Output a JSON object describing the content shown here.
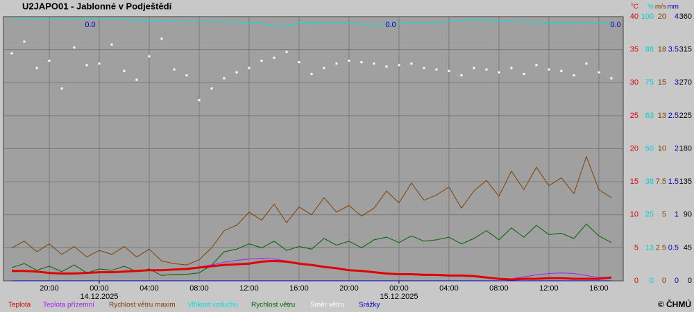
{
  "chart_data": {
    "type": "line",
    "title": "U2JAPO01 - Jablonné v Podještědí",
    "copyright": "© ČHMÚ",
    "x": [
      "2025-12-13T17:00",
      "2025-12-13T18:00",
      "2025-12-13T19:00",
      "2025-12-13T20:00",
      "2025-12-13T21:00",
      "2025-12-13T22:00",
      "2025-12-13T23:00",
      "2025-12-14T00:00",
      "2025-12-14T01:00",
      "2025-12-14T02:00",
      "2025-12-14T03:00",
      "2025-12-14T04:00",
      "2025-12-14T05:00",
      "2025-12-14T06:00",
      "2025-12-14T07:00",
      "2025-12-14T08:00",
      "2025-12-14T09:00",
      "2025-12-14T10:00",
      "2025-12-14T11:00",
      "2025-12-14T12:00",
      "2025-12-14T13:00",
      "2025-12-14T14:00",
      "2025-12-14T15:00",
      "2025-12-14T16:00",
      "2025-12-14T17:00",
      "2025-12-14T18:00",
      "2025-12-14T19:00",
      "2025-12-14T20:00",
      "2025-12-14T21:00",
      "2025-12-14T22:00",
      "2025-12-14T23:00",
      "2025-12-15T00:00",
      "2025-12-15T01:00",
      "2025-12-15T02:00",
      "2025-12-15T03:00",
      "2025-12-15T04:00",
      "2025-12-15T05:00",
      "2025-12-15T06:00",
      "2025-12-15T07:00",
      "2025-12-15T08:00",
      "2025-12-15T09:00",
      "2025-12-15T10:00",
      "2025-12-15T11:00",
      "2025-12-15T12:00",
      "2025-12-15T13:00",
      "2025-12-15T14:00",
      "2025-12-15T15:00",
      "2025-12-15T16:00",
      "2025-12-15T17:00"
    ],
    "xlim": [
      "2025-12-13T16:20",
      "2025-12-15T17:57"
    ],
    "xticks": [
      {
        "value": "2025-12-13T20:00",
        "label": "20:00"
      },
      {
        "value": "2025-12-14T00:00",
        "label": "00:00"
      },
      {
        "value": "2025-12-14T04:00",
        "label": "04:00"
      },
      {
        "value": "2025-12-14T08:00",
        "label": "08:00"
      },
      {
        "value": "2025-12-14T12:00",
        "label": "12:00"
      },
      {
        "value": "2025-12-14T16:00",
        "label": "16:00"
      },
      {
        "value": "2025-12-14T20:00",
        "label": "20:00"
      },
      {
        "value": "2025-12-15T00:00",
        "label": "00:00"
      },
      {
        "value": "2025-12-15T04:00",
        "label": "04:00"
      },
      {
        "value": "2025-12-15T08:00",
        "label": "08:00"
      },
      {
        "value": "2025-12-15T12:00",
        "label": "12:00"
      },
      {
        "value": "2025-12-15T16:00",
        "label": "16:00"
      }
    ],
    "date_labels": [
      {
        "value": "2025-12-14T00:00",
        "label": "14.12.2025"
      },
      {
        "value": "2025-12-15T00:00",
        "label": "15.12.2025"
      }
    ],
    "grid": true,
    "axes": [
      {
        "unit": "°C",
        "color": "#e00000",
        "lim": [
          0,
          40
        ],
        "ticks": [
          0,
          5,
          10,
          15,
          20,
          25,
          30,
          35,
          40
        ]
      },
      {
        "unit": "%",
        "color": "#00d0d0",
        "lim": [
          0,
          100
        ],
        "ticks": [
          0,
          {
            "value": 12.5,
            "label": "13"
          },
          25,
          {
            "value": 37.5,
            "label": "38"
          },
          50,
          {
            "value": 62.5,
            "label": "63"
          },
          75,
          {
            "value": 87.5,
            "label": "88"
          },
          100
        ]
      },
      {
        "unit": "m/s",
        "color": "#804000",
        "lim": [
          0,
          20
        ],
        "ticks": [
          0,
          2.5,
          5,
          7.5,
          10,
          {
            "value": 12.5,
            "label": "13"
          },
          15,
          {
            "value": 17.5,
            "label": "18"
          },
          20
        ]
      },
      {
        "unit": "mm",
        "color": "#0000c0",
        "lim": [
          0,
          4
        ],
        "ticks": [
          0,
          0.5,
          1,
          1.5,
          2,
          2.5,
          3,
          3.5,
          4
        ]
      },
      {
        "color": "#000000",
        "lim": [
          0,
          360
        ],
        "ticks": [
          0,
          45,
          90,
          135,
          180,
          225,
          270,
          315,
          360
        ]
      }
    ],
    "series": [
      {
        "name": "Vlhkost vzduchu",
        "color": "#00e0e0",
        "axis": 1,
        "type": "line",
        "values": [
          99.2,
          99.0,
          99.3,
          98.8,
          99.2,
          99.1,
          98.9,
          99.3,
          99.0,
          98.8,
          98.6,
          98.7,
          98.5,
          98.3,
          98.3,
          98.2,
          98.0,
          98.0,
          97.9,
          97.8,
          97.6,
          96.5,
          96.3,
          97.8,
          97.7,
          97.6,
          97.6,
          97.5,
          97.4,
          96.2,
          97.2,
          97.3,
          97.5,
          97.6,
          97.6,
          98.2,
          98.6,
          98.8,
          98.7,
          98.5,
          98.1,
          98.0,
          97.9,
          97.7,
          97.7,
          97.6,
          97.5,
          97.4,
          97.4
        ]
      },
      {
        "name": "Směr větru",
        "color": "#ffffff",
        "axis": 4,
        "type": "scatter",
        "values": [
          310,
          326,
          290,
          300,
          262,
          318,
          294,
          296,
          322,
          286,
          274,
          306,
          330,
          288,
          280,
          246,
          262,
          276,
          284,
          290,
          300,
          304,
          312,
          298,
          282,
          290,
          296,
          300,
          298,
          296,
          292,
          294,
          296,
          290,
          288,
          286,
          280,
          290,
          288,
          284,
          290,
          282,
          294,
          288,
          286,
          280,
          296,
          284,
          276
        ]
      },
      {
        "name": "Rychlost větru maxim",
        "color": "#804000",
        "axis": 2,
        "type": "line",
        "values": [
          2.5,
          3.0,
          2.2,
          2.8,
          2.0,
          2.6,
          1.8,
          2.3,
          2.0,
          2.6,
          1.8,
          2.4,
          1.5,
          1.3,
          1.2,
          1.6,
          2.5,
          3.8,
          4.2,
          5.2,
          4.6,
          5.8,
          4.4,
          5.6,
          5.0,
          6.3,
          5.2,
          5.7,
          4.9,
          5.5,
          6.8,
          5.9,
          7.4,
          6.1,
          6.5,
          7.1,
          5.5,
          6.8,
          7.6,
          6.4,
          8.3,
          6.9,
          8.6,
          7.2,
          7.8,
          6.6,
          9.4,
          6.9,
          6.3
        ]
      },
      {
        "name": "Rychlost větru",
        "color": "#006400",
        "axis": 2,
        "type": "line",
        "values": [
          1.0,
          1.3,
          0.8,
          1.1,
          0.7,
          1.2,
          0.6,
          0.9,
          0.8,
          1.1,
          0.7,
          0.9,
          0.4,
          0.5,
          0.5,
          0.6,
          1.2,
          2.2,
          2.4,
          2.8,
          2.5,
          3.0,
          2.3,
          2.6,
          2.4,
          3.2,
          2.7,
          3.0,
          2.5,
          3.1,
          3.3,
          2.9,
          3.4,
          3.0,
          3.1,
          3.3,
          2.8,
          3.2,
          3.8,
          3.1,
          4.0,
          3.3,
          4.2,
          3.5,
          3.6,
          3.2,
          4.3,
          3.4,
          2.9
        ]
      },
      {
        "name": "Teplota přízemní",
        "color": "#a020f0",
        "axis": 0,
        "type": "line",
        "values": [
          1.6,
          1.5,
          1.4,
          1.2,
          1.1,
          1.1,
          1.2,
          1.3,
          1.3,
          1.4,
          1.5,
          1.6,
          1.6,
          1.7,
          1.9,
          2.1,
          2.4,
          2.8,
          3.1,
          3.3,
          3.4,
          3.3,
          3.0,
          2.7,
          2.4,
          2.1,
          1.9,
          1.6,
          1.5,
          1.3,
          1.1,
          1.0,
          1.0,
          0.9,
          0.9,
          0.8,
          0.8,
          0.7,
          0.5,
          0.3,
          0.3,
          0.6,
          0.9,
          1.1,
          1.2,
          1.1,
          0.8,
          0.5,
          0.5
        ]
      },
      {
        "name": "Teplota",
        "color": "#e00000",
        "axis": 0,
        "type": "line",
        "width": 3,
        "values": [
          1.5,
          1.5,
          1.4,
          1.2,
          1.1,
          1.1,
          1.2,
          1.3,
          1.3,
          1.4,
          1.5,
          1.6,
          1.6,
          1.7,
          1.8,
          2.0,
          2.2,
          2.4,
          2.5,
          2.6,
          2.9,
          3.0,
          2.9,
          2.6,
          2.4,
          2.1,
          1.9,
          1.6,
          1.5,
          1.3,
          1.1,
          1.0,
          1.0,
          0.9,
          0.9,
          0.8,
          0.8,
          0.7,
          0.5,
          0.3,
          0.2,
          0.3,
          0.3,
          0.4,
          0.4,
          0.3,
          0.3,
          0.3,
          0.5
        ]
      },
      {
        "name": "Srážky",
        "color": "#0000c0",
        "axis": 3,
        "type": "line",
        "values": [
          0,
          0,
          0,
          0,
          0,
          0,
          0,
          0,
          0,
          0,
          0,
          0,
          0,
          0,
          0,
          0,
          0,
          0,
          0,
          0,
          0,
          0,
          0,
          0,
          0,
          0,
          0,
          0,
          0,
          0,
          0,
          0,
          0,
          0,
          0,
          0,
          0,
          0,
          0,
          0,
          0,
          0,
          0,
          0,
          0,
          0,
          0,
          0,
          0
        ]
      }
    ],
    "legend_order": [
      5,
      4,
      2,
      0,
      3,
      1,
      6
    ],
    "daily_precip": {
      "values": [
        0,
        0,
        0
      ],
      "value_labels": [
        "0.0",
        "0.0",
        "0.0"
      ],
      "color": "#0000c0"
    }
  }
}
